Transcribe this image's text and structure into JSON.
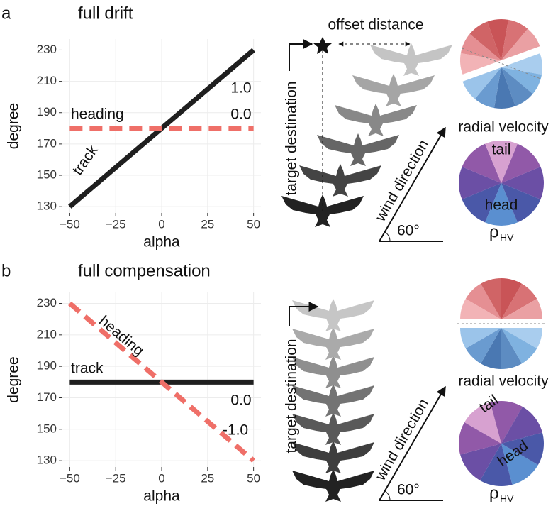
{
  "chart_data": [
    {
      "type": "line",
      "panel": "a",
      "title": "full drift",
      "xlabel": "alpha",
      "ylabel": "degree",
      "xlim": [
        -54,
        54
      ],
      "ylim": [
        126,
        237
      ],
      "xticks": [
        {
          "value": -50,
          "label": "−50"
        },
        {
          "value": -25,
          "label": "−25"
        },
        0,
        25,
        50
      ],
      "yticks": [
        130,
        150,
        170,
        190,
        210,
        230
      ],
      "grid": true,
      "x": [
        -50,
        50
      ],
      "series": [
        {
          "name": "track",
          "color": "#1f1f1f",
          "dash": false,
          "values": [
            130,
            230
          ]
        },
        {
          "name": "heading",
          "color": "#ef6f68",
          "dash": true,
          "values": [
            180,
            180
          ]
        }
      ],
      "annotations": [
        "1.0",
        "0.0"
      ]
    },
    {
      "type": "line",
      "panel": "b",
      "title": "full compensation",
      "xlabel": "alpha",
      "ylabel": "degree",
      "xlim": [
        -54,
        54
      ],
      "ylim": [
        126,
        237
      ],
      "xticks": [
        {
          "value": -50,
          "label": "−50"
        },
        {
          "value": -25,
          "label": "−25"
        },
        0,
        25,
        50
      ],
      "yticks": [
        130,
        150,
        170,
        190,
        210,
        230
      ],
      "grid": true,
      "x": [
        -50,
        50
      ],
      "series": [
        {
          "name": "track",
          "color": "#1f1f1f",
          "dash": false,
          "values": [
            180,
            180
          ]
        },
        {
          "name": "heading",
          "color": "#ef6f68",
          "dash": true,
          "values": [
            230,
            130
          ]
        }
      ],
      "annotations": [
        "0.0",
        "-1.0"
      ]
    }
  ],
  "diagram": {
    "offset_label": "offset distance",
    "target_label": "target destination",
    "wind_label": "wind direction",
    "angle_label": "60°",
    "velocity_label": "radial velocity",
    "tail_label": "tail",
    "head_label": "head",
    "rho": "ρ",
    "rho_sub": "HV"
  }
}
